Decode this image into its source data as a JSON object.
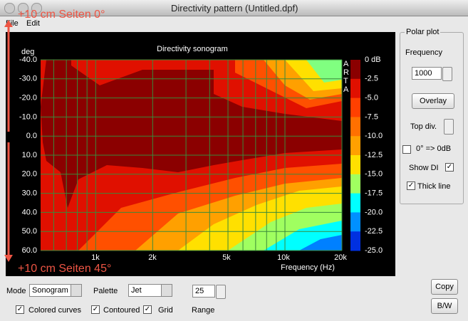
{
  "window": {
    "title": "Directivity pattern (Untitled.dpf)"
  },
  "menu": [
    "File",
    "Edit"
  ],
  "annotations": [
    "+10 cm Seiten 0°",
    "+10 cm Seiten 45°"
  ],
  "plot": {
    "title": "Directivity sonogram",
    "y_label": "deg",
    "x_label": "Frequency (Hz)",
    "yticks": [
      "-40.0",
      "-30.0",
      "-20.0",
      "-10.0",
      "0.0",
      "10.0",
      "20.0",
      "30.0",
      "40.0",
      "50.0",
      "60.0"
    ],
    "xticks": [
      "1k",
      "2k",
      "5k",
      "10k",
      "20k"
    ],
    "colorbar": [
      "0 dB",
      "-2.5",
      "-5.0",
      "-7.5",
      "-10.0",
      "-12.5",
      "-15.0",
      "-17.5",
      "-20.0",
      "-22.5",
      "-25.0"
    ],
    "watermark": "ARTA"
  },
  "polar": {
    "legend": "Polar plot",
    "frequency_label": "Frequency",
    "frequency": "1000",
    "overlay": "Overlay",
    "top_div": "Top div.",
    "zero_db": "0° => 0dB",
    "show_di": "Show DI",
    "thick_line": "Thick line"
  },
  "bottom": {
    "mode_label": "Mode",
    "mode": "Sonogram",
    "palette_label": "Palette",
    "palette": "Jet",
    "range_value": "25",
    "range_label": "Range",
    "colored_curves": "Colored curves",
    "contoured": "Contoured",
    "grid": "Grid",
    "copy": "Copy",
    "bw": "B/W"
  }
}
